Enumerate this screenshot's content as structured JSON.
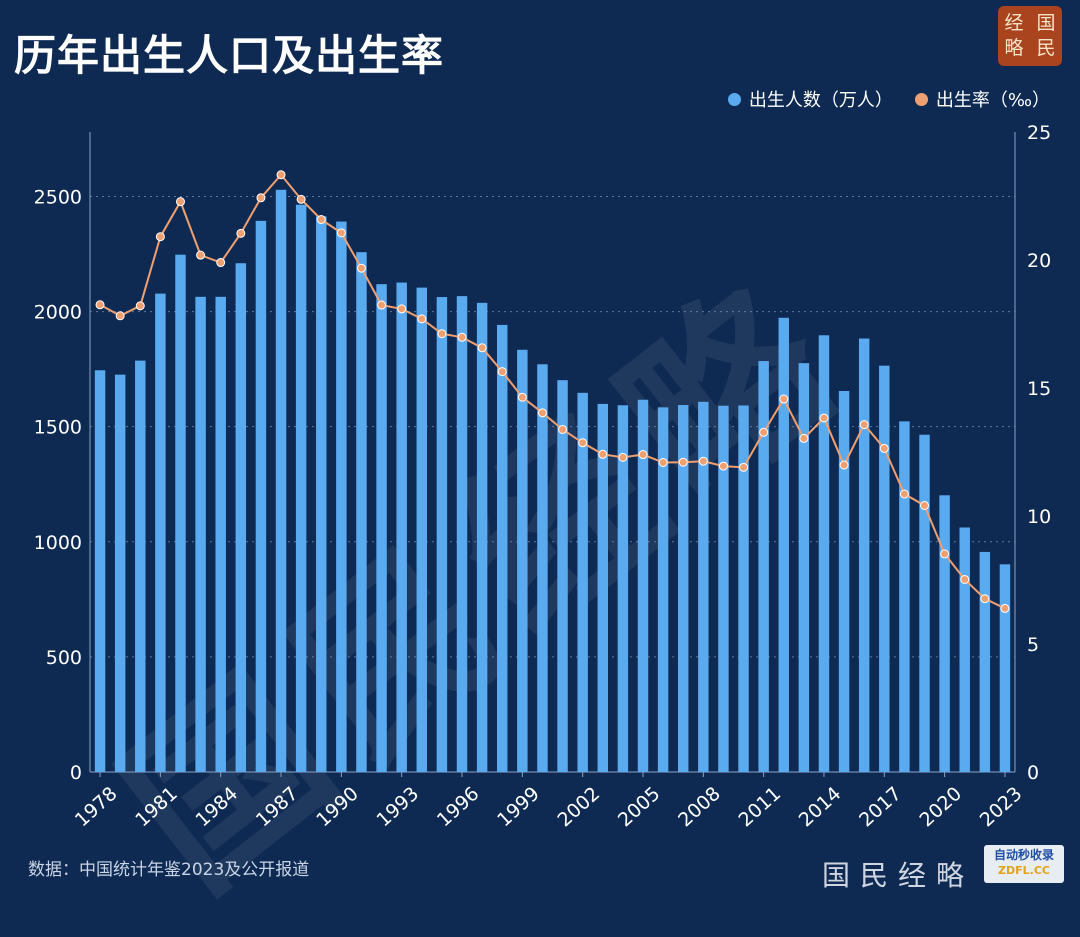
{
  "title": "历年出生人口及出生率",
  "logo": [
    "经",
    "国",
    "略",
    "民"
  ],
  "legend": [
    {
      "name": "出生人数（万人）",
      "color": "#5aaaf0"
    },
    {
      "name": "出生率（‰）",
      "color": "#f0a070"
    }
  ],
  "source": "数据：中国统计年鉴2023及公开报道",
  "footer_mark": "国民经略",
  "badge": {
    "line1": "自动秒收录",
    "line2": "ZDFL.CC"
  },
  "watermark": "国民经略",
  "chart_data": {
    "type": "bar+line",
    "years": [
      1978,
      1979,
      1980,
      1981,
      1982,
      1983,
      1984,
      1985,
      1986,
      1987,
      1988,
      1989,
      1990,
      1991,
      1992,
      1993,
      1994,
      1995,
      1996,
      1997,
      1998,
      1999,
      2000,
      2001,
      2002,
      2003,
      2004,
      2005,
      2006,
      2007,
      2008,
      2009,
      2010,
      2011,
      2012,
      2013,
      2014,
      2015,
      2016,
      2017,
      2018,
      2019,
      2020,
      2021,
      2022,
      2023
    ],
    "x_tick_labels": [
      "1978",
      "1981",
      "1984",
      "1987",
      "1990",
      "1993",
      "1996",
      "1999",
      "2002",
      "2005",
      "2008",
      "2011",
      "2014",
      "2017",
      "2020",
      "2023"
    ],
    "series": [
      {
        "name": "出生人数（万人）",
        "type": "bar",
        "axis": "left",
        "color": "#5aaaf0",
        "values": [
          1745,
          1726,
          1787,
          2078,
          2247,
          2064,
          2064,
          2210,
          2394,
          2529,
          2464,
          2414,
          2391,
          2258,
          2119,
          2126,
          2104,
          2063,
          2067,
          2038,
          1942,
          1834,
          1771,
          1702,
          1647,
          1599,
          1593,
          1617,
          1584,
          1594,
          1608,
          1591,
          1592,
          1785,
          1973,
          1776,
          1897,
          1655,
          1883,
          1765,
          1523,
          1465,
          1202,
          1062,
          956,
          902
        ]
      },
      {
        "name": "出生率（‰）",
        "type": "line",
        "axis": "right",
        "color": "#f0a070",
        "values": [
          18.25,
          17.82,
          18.21,
          20.91,
          22.28,
          20.19,
          19.9,
          21.04,
          22.43,
          23.33,
          22.37,
          21.58,
          21.06,
          19.68,
          18.24,
          18.09,
          17.7,
          17.12,
          16.98,
          16.57,
          15.64,
          14.64,
          14.03,
          13.38,
          12.86,
          12.41,
          12.29,
          12.4,
          12.09,
          12.1,
          12.14,
          11.95,
          11.9,
          13.27,
          14.57,
          13.03,
          13.83,
          11.99,
          13.57,
          12.64,
          10.86,
          10.41,
          8.52,
          7.52,
          6.77,
          6.39
        ]
      }
    ],
    "y_left": {
      "ticks": [
        0,
        500,
        1000,
        1500,
        2000,
        2500
      ],
      "range": [
        0,
        2780
      ]
    },
    "y_right": {
      "ticks": [
        0,
        5,
        10,
        15,
        20,
        25
      ],
      "range": [
        0,
        25
      ]
    },
    "grid": "horizontal dotted",
    "legend_position": "top-right"
  }
}
